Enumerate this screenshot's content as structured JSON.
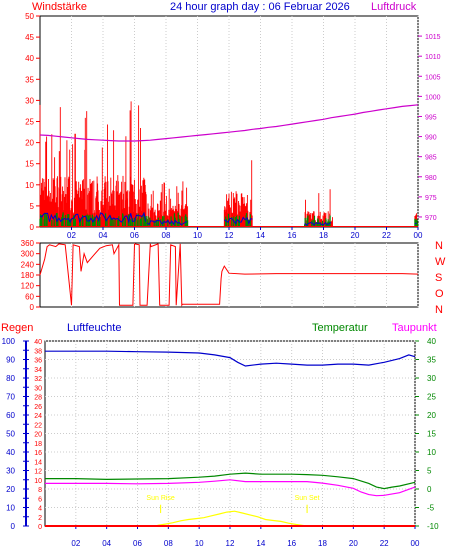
{
  "header": {
    "title": "24 hour graph day : 06 Februar 2026",
    "left_label": "Windstärke",
    "right_label": "Luftdruck"
  },
  "colors": {
    "wind": "#ff0000",
    "gust": "#0000cc",
    "wind_low": "#008800",
    "pressure": "#cc00cc",
    "direction": "#ff0000",
    "humidity": "#0000cc",
    "temperature": "#008800",
    "dewpoint": "#ff00ff",
    "solar": "#ffff00",
    "rain": "#ff0000",
    "axis_blue": "#0000cc",
    "axis_red": "#ff0000",
    "axis_green": "#008800",
    "axis_magenta": "#cc00cc",
    "grid": "#cccccc"
  },
  "chart_data": [
    {
      "type": "line",
      "name": "wind-pressure",
      "x_ticks": [
        "02",
        "04",
        "06",
        "08",
        "10",
        "12",
        "14",
        "16",
        "18",
        "20",
        "22",
        "00"
      ],
      "xlim": [
        0,
        24
      ],
      "y_left": {
        "label": "Windstärke",
        "lim": [
          0,
          50
        ],
        "ticks": [
          0,
          5,
          10,
          15,
          20,
          25,
          30,
          35,
          40,
          45,
          50
        ]
      },
      "y_right": {
        "label": "Luftdruck",
        "lim": [
          967.5,
          1020
        ],
        "ticks": [
          970,
          975,
          980,
          985,
          990,
          995,
          1000,
          1005,
          1010,
          1015
        ]
      },
      "series": [
        {
          "name": "Luftdruck",
          "axis": "right",
          "x": [
            0.0,
            0.5,
            1.0,
            1.5,
            2.0,
            2.5,
            3.0,
            3.5,
            4.0,
            4.5,
            5.0,
            5.5,
            6.0,
            6.5,
            7.0,
            7.5,
            8.0,
            8.5,
            9.0,
            9.5,
            10.0,
            10.5,
            11.0,
            11.5,
            12.0,
            12.5,
            13.0,
            13.5,
            14.0,
            14.5,
            15.0,
            15.5,
            16.0,
            16.5,
            17.0,
            17.5,
            18.0,
            18.5,
            19.0,
            19.5,
            20.0,
            20.5,
            21.0,
            21.5,
            22.0,
            22.5,
            23.0,
            23.5,
            24.0
          ],
          "y": [
            990.4,
            990.3,
            990.1,
            989.9,
            989.7,
            989.5,
            989.3,
            989.2,
            989.1,
            989.0,
            988.9,
            988.9,
            988.9,
            989.0,
            989.1,
            989.3,
            989.5,
            989.7,
            989.9,
            990.1,
            990.3,
            990.5,
            990.7,
            990.9,
            991.1,
            991.3,
            991.5,
            991.8,
            992.0,
            992.3,
            992.5,
            992.8,
            993.1,
            993.4,
            993.7,
            994.0,
            994.3,
            994.7,
            995.0,
            995.3,
            995.6,
            996.0,
            996.3,
            996.6,
            996.9,
            997.2,
            997.5,
            997.7,
            997.9
          ]
        }
      ],
      "wind_bursts": [
        {
          "from": 0.0,
          "to": 6.8,
          "max": 30,
          "mean": 6.5
        },
        {
          "from": 6.8,
          "to": 9.4,
          "max": 11,
          "mean": 3
        },
        {
          "from": 11.7,
          "to": 13.5,
          "max": 18,
          "mean": 4.5
        },
        {
          "from": 16.8,
          "to": 18.6,
          "max": 10,
          "mean": 2
        },
        {
          "from": 23.8,
          "to": 24.0,
          "max": 5,
          "mean": 2
        }
      ]
    },
    {
      "type": "line",
      "name": "wind-direction",
      "xlim": [
        0,
        24
      ],
      "y_left": {
        "lim": [
          0,
          360
        ],
        "ticks": [
          0,
          60,
          120,
          180,
          240,
          300,
          360
        ]
      },
      "compass": [
        "N",
        "W",
        "S",
        "O",
        "N"
      ],
      "series": [
        {
          "name": "direction",
          "x": [
            0.0,
            0.3,
            0.45,
            0.6,
            1.0,
            1.2,
            1.6,
            2.0,
            2.1,
            2.5,
            2.6,
            2.8,
            3.0,
            3.4,
            3.8,
            4.2,
            4.6,
            4.7,
            5.0,
            5.05,
            5.9,
            6.0,
            6.3,
            6.35,
            6.8,
            7.0,
            7.05,
            7.5,
            7.6,
            8.2,
            8.3,
            8.6,
            8.65,
            8.9,
            9.0,
            9.05,
            11.4,
            11.5,
            11.55,
            11.7,
            12.0,
            13.0,
            15.0,
            17.0,
            20.0,
            23.0,
            24.0
          ],
          "y": [
            180,
            270,
            340,
            350,
            340,
            355,
            350,
            10,
            350,
            340,
            200,
            300,
            250,
            290,
            330,
            345,
            350,
            300,
            350,
            10,
            10,
            355,
            350,
            10,
            10,
            355,
            340,
            355,
            10,
            10,
            350,
            340,
            10,
            355,
            10,
            15,
            15,
            160,
            200,
            230,
            190,
            185,
            188,
            188,
            188,
            188,
            185
          ]
        }
      ]
    },
    {
      "type": "line",
      "name": "humidity-temperature",
      "x_ticks": [
        "02",
        "04",
        "06",
        "08",
        "10",
        "12",
        "14",
        "16",
        "18",
        "20",
        "22",
        "00"
      ],
      "xlim": [
        0,
        24
      ],
      "y_left_outer": {
        "label": "Regen",
        "lim": [
          0,
          100
        ],
        "ticks": [
          0,
          10,
          20,
          30,
          40,
          50,
          60,
          70,
          80,
          90,
          100
        ]
      },
      "y_left_inner": {
        "label": "Luftfeuchte",
        "lim": [
          0,
          40
        ],
        "ticks": [
          0,
          2,
          4,
          6,
          8,
          10,
          12,
          14,
          16,
          18,
          20,
          22,
          24,
          26,
          28,
          30,
          32,
          34,
          36,
          38,
          40
        ]
      },
      "y_right": {
        "label": "Taupunkt",
        "lim": [
          -10,
          40
        ],
        "ticks": [
          -10,
          -5,
          0,
          5,
          10,
          15,
          20,
          25,
          30,
          35,
          40
        ]
      },
      "top_labels": {
        "humidity": "Luftfeuchte",
        "temperature": "Temperatur",
        "dewpoint": "Taupunkt"
      },
      "sunrise": {
        "label": "Sun Rise",
        "x": 7.5
      },
      "sunset": {
        "label": "Sun Set",
        "x": 17.0
      },
      "series": [
        {
          "name": "Luftfeuchte",
          "axis": "left_outer",
          "x": [
            0,
            2,
            4,
            6,
            8,
            10,
            11,
            12,
            12.5,
            13,
            14,
            15,
            16,
            17,
            18,
            19,
            20,
            21,
            22,
            23,
            23.6,
            24
          ],
          "y": [
            94.5,
            94.5,
            94.5,
            94.2,
            94.0,
            93.5,
            92.5,
            91.0,
            88.5,
            86.5,
            87.5,
            88.0,
            87.5,
            87.0,
            87.0,
            87.5,
            87.5,
            87.0,
            88.5,
            90.5,
            92.5,
            91.5
          ]
        },
        {
          "name": "Temperatur",
          "axis": "right",
          "x": [
            0,
            2,
            4,
            6,
            8,
            10,
            11,
            12,
            13,
            14,
            15,
            16,
            17,
            18,
            19,
            20,
            21,
            21.5,
            22,
            22.5,
            23,
            24
          ],
          "y": [
            2.8,
            2.8,
            2.6,
            2.7,
            2.8,
            3.2,
            3.5,
            4.0,
            4.3,
            4.0,
            4.0,
            4.0,
            3.9,
            3.7,
            3.3,
            2.8,
            1.5,
            0.5,
            0.1,
            0.5,
            0.8,
            1.8
          ]
        },
        {
          "name": "Taupunkt",
          "axis": "right",
          "x": [
            0,
            2,
            4,
            6,
            8,
            10,
            11,
            12,
            13,
            14,
            15,
            16,
            17,
            18,
            19,
            20,
            20.5,
            21,
            21.5,
            22,
            23,
            24
          ],
          "y": [
            1.5,
            1.5,
            1.5,
            1.4,
            1.5,
            1.8,
            2.1,
            2.5,
            2.0,
            2.0,
            2.0,
            2.0,
            2.0,
            1.6,
            1.0,
            0.2,
            -0.8,
            -1.5,
            -1.8,
            -1.7,
            -1.0,
            0.5
          ]
        },
        {
          "name": "solar",
          "axis": "left_outer",
          "x": [
            7.3,
            7.8,
            8.3,
            8.8,
            9.3,
            9.8,
            10.3,
            10.8,
            11.3,
            11.8,
            12.3,
            12.8,
            13.3,
            13.8,
            14.3,
            14.8,
            15.3,
            15.8,
            16.3,
            16.8
          ],
          "y": [
            0.3,
            1.0,
            1.8,
            2.8,
            3.5,
            4.0,
            4.5,
            5.5,
            6.5,
            7.5,
            8.0,
            7.0,
            6.0,
            5.0,
            3.5,
            3.0,
            2.5,
            1.5,
            0.8,
            0.2
          ]
        },
        {
          "name": "rain",
          "axis": "left_outer",
          "x": [
            0,
            24
          ],
          "y": [
            0,
            0
          ]
        }
      ]
    }
  ]
}
